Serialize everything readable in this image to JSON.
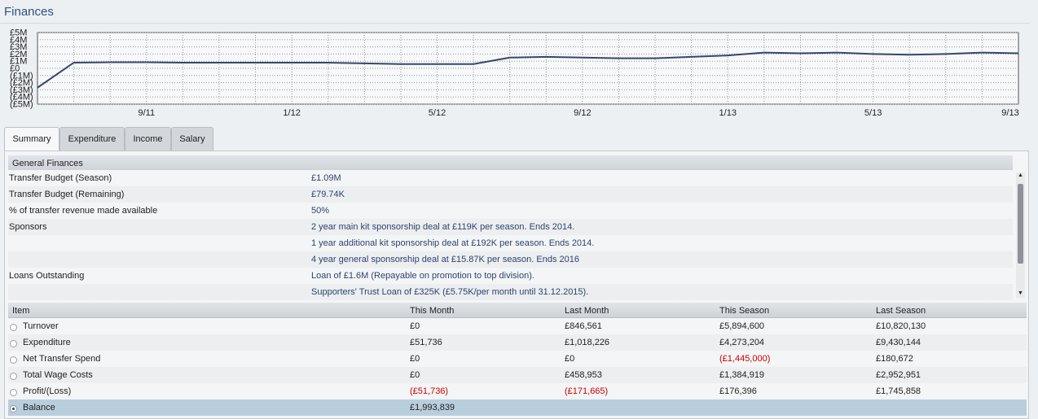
{
  "title": "Finances",
  "chart_data": {
    "type": "line",
    "categories": [
      null,
      null,
      null,
      "9/11",
      null,
      null,
      null,
      "1/12",
      null,
      null,
      null,
      "5/12",
      null,
      null,
      null,
      "9/12",
      null,
      null,
      null,
      "1/13",
      null,
      null,
      null,
      "5/13",
      null,
      null,
      null,
      "9/13"
    ],
    "series": [
      {
        "color": "#34486a",
        "values": [
          -2.7,
          0.8,
          0.85,
          0.85,
          0.8,
          0.8,
          0.8,
          0.8,
          0.8,
          0.7,
          0.6,
          0.6,
          0.6,
          1.5,
          1.6,
          1.5,
          1.4,
          1.4,
          1.6,
          1.8,
          2.2,
          2.1,
          2.2,
          2.0,
          1.9,
          2.0,
          2.2,
          2.1
        ]
      }
    ],
    "ylim": [
      -5,
      5
    ],
    "yticks": [
      {
        "value": 5,
        "label": "£5M"
      },
      {
        "value": 4,
        "label": "£4M"
      },
      {
        "value": 3,
        "label": "£3M"
      },
      {
        "value": 2,
        "label": "£2M"
      },
      {
        "value": 1,
        "label": "£1M"
      },
      {
        "value": 0,
        "label": "£0"
      },
      {
        "value": -1,
        "label": "(£1M)"
      },
      {
        "value": -2,
        "label": "(£2M)"
      },
      {
        "value": -3,
        "label": "(£3M)"
      },
      {
        "value": -4,
        "label": "(£4M)"
      },
      {
        "value": -5,
        "label": "(£5M)"
      }
    ],
    "grid": true
  },
  "tabs": [
    "Summary",
    "Expenditure",
    "Income",
    "Salary"
  ],
  "active_tab": 0,
  "general": {
    "title": "General Finances",
    "rows": [
      {
        "label": "Transfer Budget (Season)",
        "value": "£1.09M"
      },
      {
        "label": "Transfer Budget (Remaining)",
        "value": "£79.74K"
      },
      {
        "label": "% of transfer revenue made available",
        "value": "50%"
      },
      {
        "label": "Sponsors",
        "value": "2 year main kit sponsorship deal at £119K per season. Ends 2014."
      },
      {
        "value": "1 year additional kit sponsorship deal at £192K per season. Ends 2014."
      },
      {
        "value": "4 year general sponsorship deal at £15.87K per season. Ends 2016"
      },
      {
        "label": "Loans Outstanding",
        "value": "Loan of £1.6M (Repayable on promotion to top division)."
      },
      {
        "value": "Supporters' Trust Loan of £325K (£5.75K/per month until 31.12.2015)."
      }
    ]
  },
  "items": {
    "columns": [
      "Item",
      "This Month",
      "Last Month",
      "This Season",
      "Last Season"
    ],
    "rows": [
      [
        "Turnover",
        "£0",
        "£846,561",
        "£5,894,600",
        "£10,820,130"
      ],
      [
        "Expenditure",
        "£51,736",
        "£1,018,226",
        "£4,273,204",
        "£9,430,144"
      ],
      [
        "Net Transfer Spend",
        "£0",
        "£0",
        "(£1,445,000)",
        "£180,672"
      ],
      [
        "Total Wage Costs",
        "£0",
        "£458,953",
        "£1,384,919",
        "£2,952,951"
      ],
      [
        "Profit/(Loss)",
        "(£51,736)",
        "(£171,665)",
        "£176,396",
        "£1,745,858"
      ],
      [
        "Balance",
        "£1,993,839"
      ]
    ],
    "selected_row": 5
  }
}
